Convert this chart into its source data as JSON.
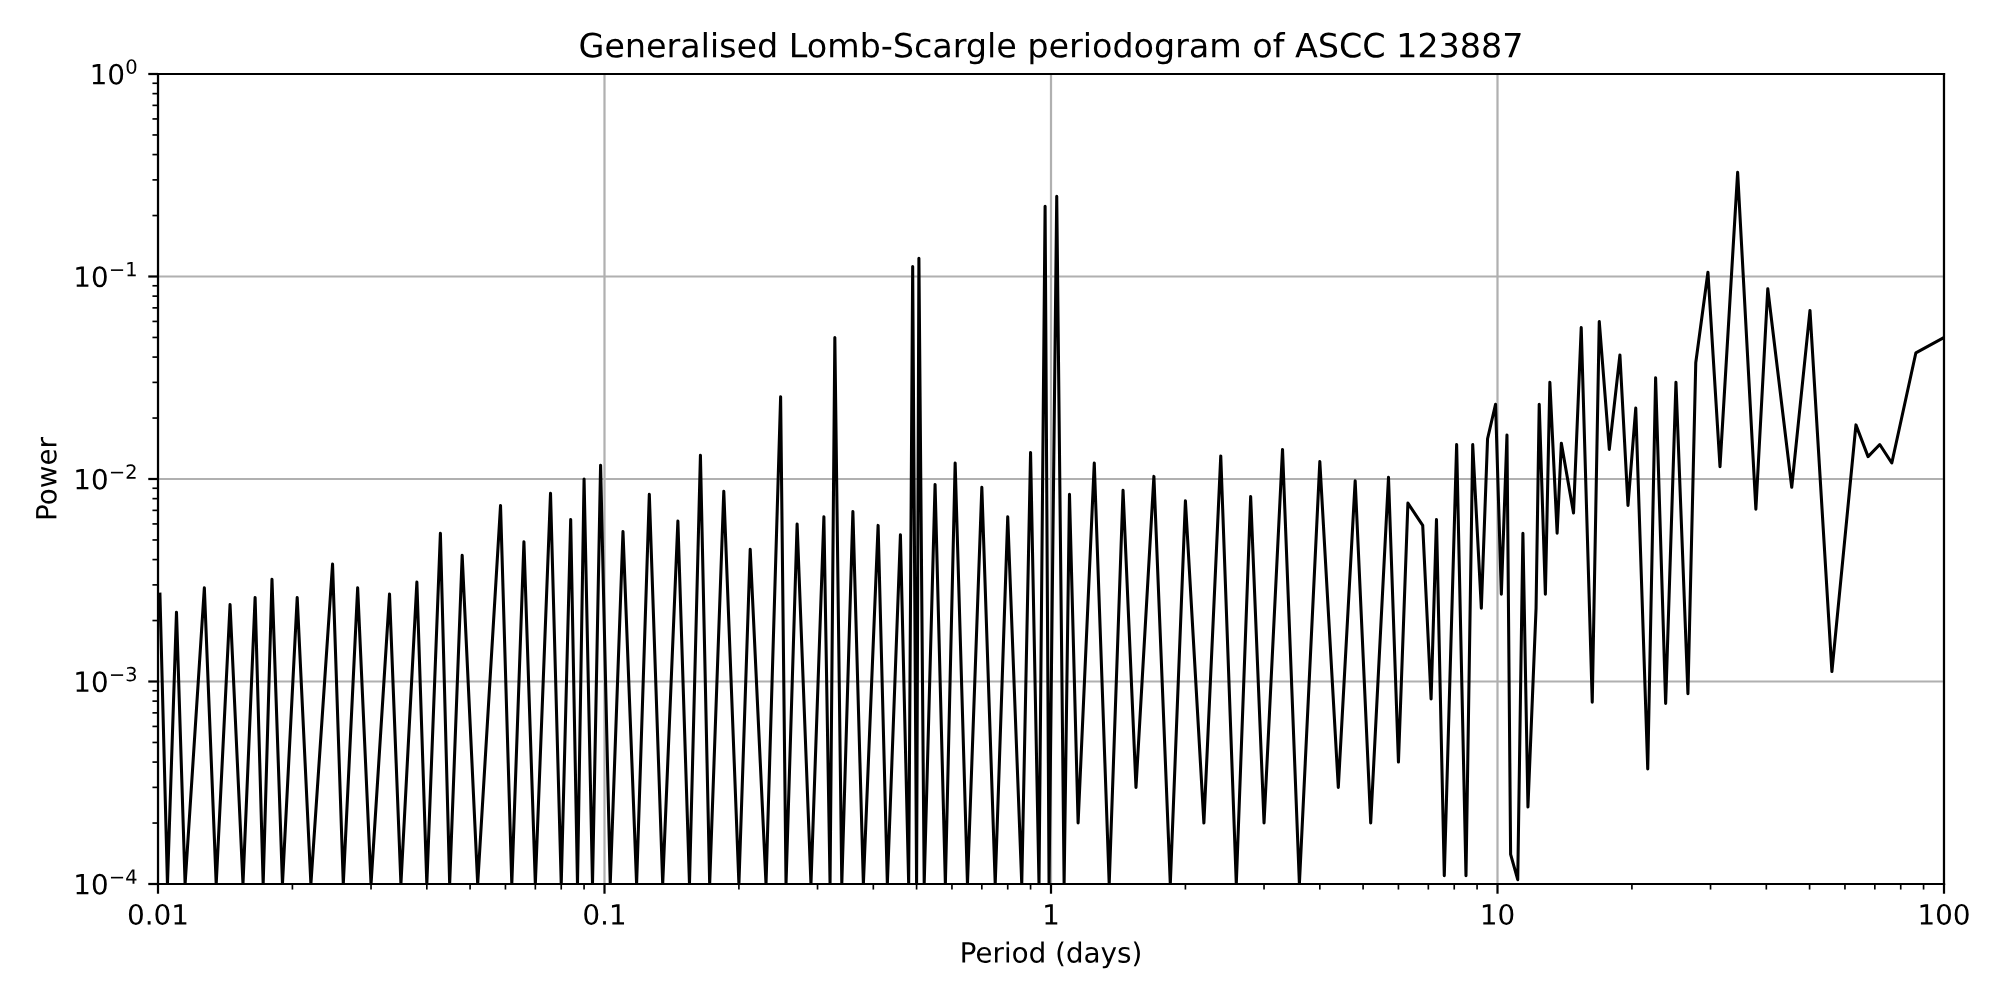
{
  "chart_data": {
    "type": "line",
    "title": "Generalised Lomb-Scargle periodogram of ASCC 123887",
    "xlabel": "Period (days)",
    "ylabel": "Power",
    "log": "xy",
    "grid": true,
    "xlim": [
      0.01,
      100
    ],
    "ylim": [
      0.0001,
      1
    ],
    "xticks": [
      0.01,
      0.1,
      1,
      10,
      100
    ],
    "yticks": [
      {
        "value": 0.0001,
        "label": "10$^{−4}$"
      },
      {
        "value": 0.001,
        "label": "10$^{−3}$"
      },
      {
        "value": 0.01,
        "label": "10$^{−2}$"
      },
      {
        "value": 0.1,
        "label": "10$^{−1}$"
      },
      {
        "value": 1,
        "label": "10$^{0}$"
      }
    ],
    "x": [
      0.0101,
      0.0105,
      0.011,
      0.0115,
      0.0127,
      0.0135,
      0.0145,
      0.0155,
      0.0165,
      0.0172,
      0.018,
      0.019,
      0.0205,
      0.022,
      0.0246,
      0.026,
      0.028,
      0.03,
      0.033,
      0.035,
      0.038,
      0.04,
      0.0429,
      0.045,
      0.048,
      0.052,
      0.0585,
      0.062,
      0.066,
      0.07,
      0.0757,
      0.08,
      0.084,
      0.087,
      0.09,
      0.094,
      0.098,
      0.103,
      0.11,
      0.118,
      0.126,
      0.135,
      0.146,
      0.155,
      0.164,
      0.172,
      0.185,
      0.2,
      0.212,
      0.23,
      0.248,
      0.255,
      0.27,
      0.29,
      0.31,
      0.32,
      0.328,
      0.34,
      0.36,
      0.38,
      0.41,
      0.43,
      0.46,
      0.48,
      0.49,
      0.5,
      0.506,
      0.52,
      0.55,
      0.58,
      0.61,
      0.65,
      0.7,
      0.75,
      0.8,
      0.86,
      0.9,
      0.94,
      0.97,
      0.99,
      1.03,
      1.07,
      1.1,
      1.15,
      1.25,
      1.35,
      1.45,
      1.55,
      1.7,
      1.85,
      2.0,
      2.2,
      2.4,
      2.6,
      2.8,
      3.0,
      3.3,
      3.6,
      4.0,
      4.4,
      4.8,
      5.2,
      5.7,
      6.0,
      6.3,
      6.8,
      7.1,
      7.3,
      7.6,
      8.1,
      8.5,
      8.8,
      9.2,
      9.5,
      9.9,
      10.2,
      10.5,
      10.7,
      11.1,
      11.4,
      11.7,
      12.2,
      12.4,
      12.8,
      13.1,
      13.6,
      13.9,
      14.8,
      15.4,
      16.3,
      16.9,
      17.8,
      18.8,
      19.6,
      20.4,
      21.7,
      22.6,
      23.8,
      25.1,
      26.7,
      27.8,
      29.6,
      31.5,
      34.5,
      37.9,
      40.3,
      45.6,
      50.1,
      56.1,
      63.5,
      67.6,
      71.8,
      76.4,
      86.5,
      100
    ],
    "series": [
      {
        "color": "#000000",
        "values": [
          0.0027,
          0.0001,
          0.0022,
          0.0001,
          0.0029,
          0.0001,
          0.0024,
          0.0001,
          0.0026,
          0.0001,
          0.0032,
          0.0001,
          0.0026,
          0.0001,
          0.0038,
          0.0001,
          0.0029,
          0.0001,
          0.0027,
          0.0001,
          0.0031,
          0.0001,
          0.0054,
          0.0001,
          0.0042,
          0.0001,
          0.0074,
          0.0001,
          0.0049,
          0.0001,
          0.0085,
          0.0001,
          0.0063,
          0.0001,
          0.01,
          0.0001,
          0.0117,
          0.0001,
          0.0055,
          0.0001,
          0.0084,
          0.0001,
          0.0062,
          0.0001,
          0.0131,
          0.0001,
          0.0087,
          0.0001,
          0.0045,
          0.0001,
          0.0255,
          0.0001,
          0.006,
          0.0001,
          0.0065,
          0.0001,
          0.05,
          0.0001,
          0.0069,
          0.0001,
          0.0059,
          0.0001,
          0.0053,
          0.0001,
          0.112,
          0.0001,
          0.123,
          0.0001,
          0.0094,
          0.0001,
          0.012,
          0.0001,
          0.0091,
          0.0001,
          0.0065,
          0.0001,
          0.0135,
          0.0001,
          0.222,
          0.0001,
          0.249,
          0.0001,
          0.0084,
          0.0002,
          0.012,
          0.0001,
          0.0088,
          0.0003,
          0.0103,
          0.0001,
          0.0078,
          0.0002,
          0.013,
          0.0001,
          0.0082,
          0.0002,
          0.014,
          0.0001,
          0.0122,
          0.0003,
          0.0098,
          0.0002,
          0.0102,
          0.0004,
          0.0076,
          0.0059,
          0.00082,
          0.0063,
          0.00011,
          0.0148,
          0.00011,
          0.0148,
          0.0023,
          0.0158,
          0.0234,
          0.0027,
          0.0165,
          0.00014,
          0.000105,
          0.0054,
          0.00024,
          0.0023,
          0.0234,
          0.0027,
          0.03,
          0.0054,
          0.015,
          0.0068,
          0.056,
          0.00079,
          0.06,
          0.014,
          0.041,
          0.0074,
          0.0224,
          0.00037,
          0.0316,
          0.00078,
          0.03,
          0.00087,
          0.0375,
          0.105,
          0.0115,
          0.327,
          0.0071,
          0.087,
          0.0091,
          0.068,
          0.00112,
          0.0185,
          0.0129,
          0.0148,
          0.012,
          0.042,
          0.05
        ]
      }
    ]
  }
}
